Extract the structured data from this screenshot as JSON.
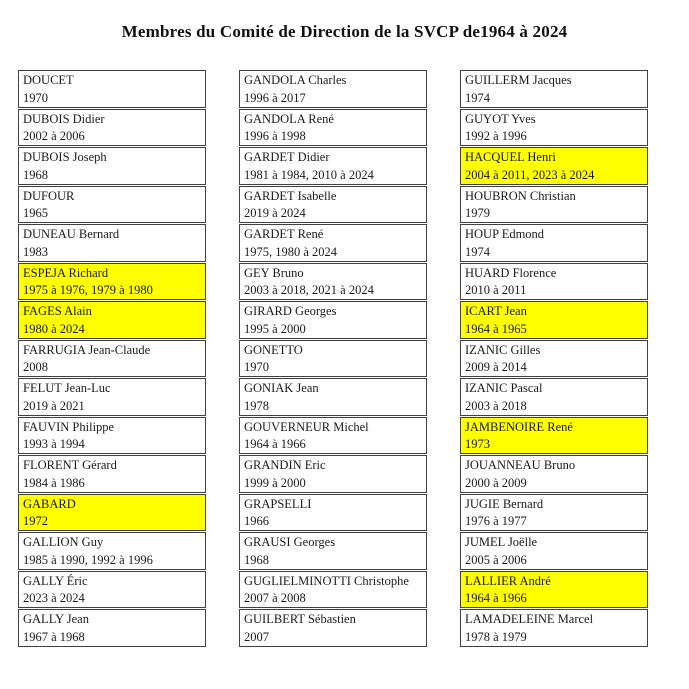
{
  "title": "Membres du Comité de Direction de la SVCP de1964 à 2024",
  "colors": {
    "highlight": "#ffff00",
    "border": "#404040",
    "text": "#1a1a1a"
  },
  "columns": [
    {
      "entries": [
        {
          "name": "DOUCET",
          "years": "1970",
          "highlight": false
        },
        {
          "name": "DUBOIS Didier",
          "years": "2002 à 2006",
          "highlight": false
        },
        {
          "name": "DUBOIS Joseph",
          "years": "1968",
          "highlight": false
        },
        {
          "name": "DUFOUR",
          "years": "1965",
          "highlight": false
        },
        {
          "name": "DUNEAU Bernard",
          "years": "1983",
          "highlight": false
        },
        {
          "name": "ESPEJA Richard",
          "years": "1975 à 1976, 1979 à 1980",
          "highlight": true
        },
        {
          "name": "FAGES Alain",
          "years": "1980 à 2024",
          "highlight": true
        },
        {
          "name": "FARRUGIA Jean-Claude",
          "years": "2008",
          "highlight": false
        },
        {
          "name": "FELUT Jean-Luc",
          "years": "2019 à 2021",
          "highlight": false
        },
        {
          "name": "FAUVIN Philippe",
          "years": "1993 à 1994",
          "highlight": false
        },
        {
          "name": "FLORENT Gérard",
          "years": "1984 à 1986",
          "highlight": false
        },
        {
          "name": "GABARD",
          "years": "1972",
          "highlight": true
        },
        {
          "name": "GALLION Guy",
          "years": "1985 à 1990, 1992 à 1996",
          "highlight": false
        },
        {
          "name": "GALLY Éric",
          "years": "2023 à 2024",
          "highlight": false
        },
        {
          "name": "GALLY Jean",
          "years": "1967 à 1968",
          "highlight": false
        }
      ]
    },
    {
      "entries": [
        {
          "name": "GANDOLA Charles",
          "years": "1996 à 2017",
          "highlight": false
        },
        {
          "name": "GANDOLA René",
          "years": "1996 à 1998",
          "highlight": false
        },
        {
          "name": "GARDET Didier",
          "years": "1981 à 1984, 2010 à 2024",
          "highlight": false
        },
        {
          "name": "GARDET Isabelle",
          "years": "2019 à 2024",
          "highlight": false
        },
        {
          "name": "GARDET René",
          "years": "1975, 1980 à 2024",
          "highlight": false
        },
        {
          "name": "GEY Bruno",
          "years": "2003 à 2018, 2021 à 2024",
          "highlight": false
        },
        {
          "name": "GIRARD Georges",
          "years": "1995 à 2000",
          "highlight": false
        },
        {
          "name": "GONETTO",
          "years": "1970",
          "highlight": false
        },
        {
          "name": "GONIAK Jean",
          "years": "1978",
          "highlight": false
        },
        {
          "name": "GOUVERNEUR Michel",
          "years": "1964 à 1966",
          "highlight": false
        },
        {
          "name": "GRANDIN Eric",
          "years": "1999 à 2000",
          "highlight": false
        },
        {
          "name": "GRAPSELLI",
          "years": "1966",
          "highlight": false
        },
        {
          "name": "GRAUSI Georges",
          "years": "1968",
          "highlight": false
        },
        {
          "name": "GUGLIELMINOTTI Christophe",
          "years": "2007 à 2008",
          "highlight": false
        },
        {
          "name": "GUILBERT Sébastien",
          "years": "2007",
          "highlight": false
        }
      ]
    },
    {
      "entries": [
        {
          "name": "GUILLERM Jacques",
          "years": "1974",
          "highlight": false
        },
        {
          "name": "GUYOT Yves",
          "years": "1992 à 1996",
          "highlight": false
        },
        {
          "name": "HACQUEL Henri",
          "years": "2004 à 2011, 2023 à 2024",
          "highlight": true
        },
        {
          "name": "HOUBRON Christian",
          "years": "1979",
          "highlight": false
        },
        {
          "name": "HOUP Edmond",
          "years": "1974",
          "highlight": false
        },
        {
          "name": "HUARD Florence",
          "years": "2010 à 2011",
          "highlight": false
        },
        {
          "name": "ICART Jean",
          "years": "1964 à 1965",
          "highlight": true
        },
        {
          "name": "IZANIC Gilles",
          "years": "2009 à 2014",
          "highlight": false
        },
        {
          "name": "IZANIC Pascal",
          "years": "2003 à 2018",
          "highlight": false
        },
        {
          "name": "JAMBENOIRE René",
          "years": "1973",
          "highlight": true
        },
        {
          "name": "JOUANNEAU Bruno",
          "years": "2000 à 2009",
          "highlight": false
        },
        {
          "name": "JUGIE Bernard",
          "years": "1976 à 1977",
          "highlight": false
        },
        {
          "name": "JUMEL Joëlle",
          "years": "2005 à 2006",
          "highlight": false
        },
        {
          "name": "LALLIER André",
          "years": "1964 à 1966",
          "highlight": true
        },
        {
          "name": "LAMADELEINE Marcel",
          "years": "1978 à 1979",
          "highlight": false
        }
      ]
    }
  ]
}
